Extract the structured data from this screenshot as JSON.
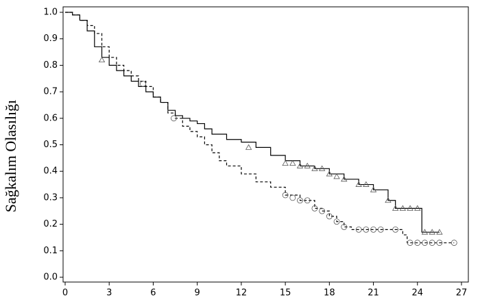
{
  "chart_data": {
    "type": "km-step",
    "y_label": "Sağkalım Olasılığı",
    "xlim": [
      0,
      27
    ],
    "xticks": [
      0,
      3,
      6,
      9,
      12,
      15,
      18,
      21,
      24,
      27
    ],
    "ylim": [
      0,
      1
    ],
    "yticks": [
      {
        "value": 0,
        "label": "0.0"
      },
      0.1,
      0.2,
      0.3,
      0.4,
      0.5,
      0.6,
      0.7,
      0.8,
      0.9,
      {
        "value": 1,
        "label": "1.0"
      }
    ],
    "series": [
      {
        "color": "#000000",
        "dash": "solid",
        "marker": "triangle",
        "x": [
          0,
          0.5,
          1,
          1.5,
          2,
          2.5,
          3,
          3.5,
          4,
          4.5,
          5,
          5.5,
          6,
          6.5,
          7,
          7.5,
          8,
          8.5,
          9,
          9.5,
          10,
          11,
          12,
          13,
          14,
          15,
          16,
          17,
          18,
          19,
          20,
          21,
          22,
          22.5,
          24.3,
          25.5
        ],
        "values": [
          1.0,
          0.99,
          0.97,
          0.93,
          0.87,
          0.83,
          0.8,
          0.78,
          0.76,
          0.74,
          0.72,
          0.7,
          0.68,
          0.66,
          0.63,
          0.61,
          0.6,
          0.59,
          0.58,
          0.56,
          0.54,
          0.52,
          0.51,
          0.49,
          0.46,
          0.44,
          0.42,
          0.41,
          0.39,
          0.37,
          0.35,
          0.33,
          0.29,
          0.26,
          0.17,
          0.17
        ],
        "censor_x": [
          2.5,
          12.5,
          15,
          15.5,
          16,
          16.5,
          17,
          17.5,
          18,
          18.5,
          19,
          20,
          20.5,
          21,
          22,
          22.5,
          23,
          23.5,
          24,
          24.5,
          25,
          25.5
        ],
        "censor_y": [
          0.82,
          0.49,
          0.43,
          0.43,
          0.42,
          0.42,
          0.41,
          0.41,
          0.39,
          0.38,
          0.37,
          0.35,
          0.35,
          0.33,
          0.29,
          0.26,
          0.26,
          0.26,
          0.26,
          0.17,
          0.17,
          0.17
        ]
      },
      {
        "color": "#000000",
        "dash": "dashed",
        "marker": "circle",
        "x": [
          0,
          0.5,
          1,
          1.5,
          2,
          2.5,
          3,
          3.5,
          4,
          4.5,
          5,
          5.5,
          6,
          6.5,
          7,
          7.5,
          8,
          8.5,
          9,
          9.5,
          10,
          10.5,
          11,
          12,
          13,
          14,
          15,
          16,
          17,
          17.5,
          18,
          18.5,
          19,
          19.5,
          20,
          21,
          22,
          23,
          23.3,
          26.5
        ],
        "values": [
          1.0,
          0.99,
          0.97,
          0.95,
          0.92,
          0.87,
          0.83,
          0.8,
          0.78,
          0.76,
          0.74,
          0.72,
          0.68,
          0.66,
          0.62,
          0.6,
          0.57,
          0.55,
          0.53,
          0.5,
          0.47,
          0.44,
          0.42,
          0.39,
          0.36,
          0.34,
          0.31,
          0.29,
          0.26,
          0.25,
          0.23,
          0.21,
          0.19,
          0.18,
          0.18,
          0.18,
          0.18,
          0.16,
          0.13,
          0.13
        ],
        "censor_x": [
          5.3,
          7.4,
          15,
          15.5,
          16,
          16.5,
          17,
          17.5,
          18,
          18.5,
          19,
          20,
          20.5,
          21,
          21.5,
          22.5,
          23.5,
          24,
          24.5,
          25,
          25.5,
          26.5
        ],
        "censor_y": [
          0.73,
          0.6,
          0.31,
          0.3,
          0.29,
          0.29,
          0.26,
          0.25,
          0.23,
          0.21,
          0.19,
          0.18,
          0.18,
          0.18,
          0.18,
          0.18,
          0.13,
          0.13,
          0.13,
          0.13,
          0.13,
          0.13
        ]
      }
    ]
  }
}
